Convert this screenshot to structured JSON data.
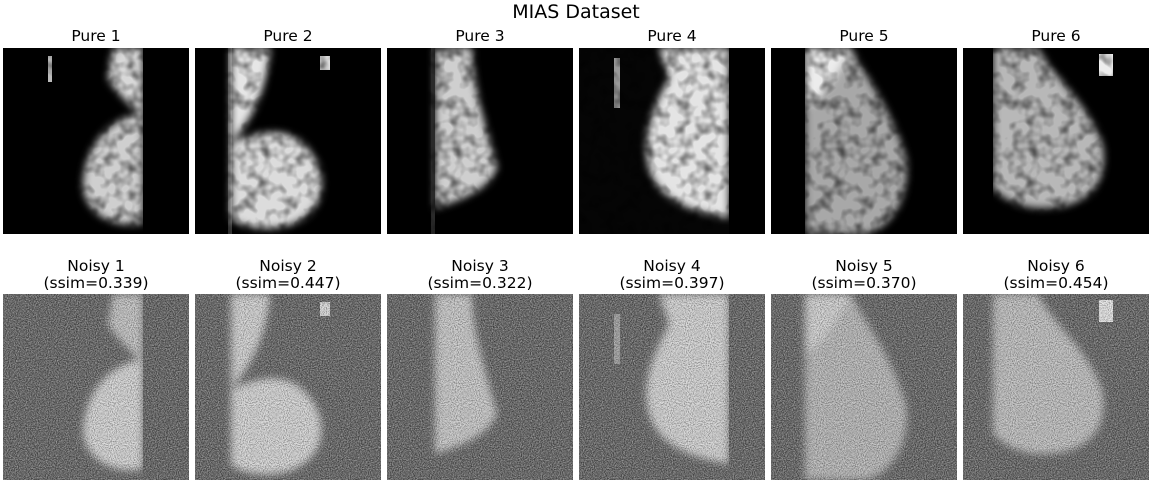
{
  "figure": {
    "title": "MIAS Dataset"
  },
  "pure_row": [
    {
      "title": "Pure 1"
    },
    {
      "title": "Pure 2"
    },
    {
      "title": "Pure 3"
    },
    {
      "title": "Pure 4"
    },
    {
      "title": "Pure 5"
    },
    {
      "title": "Pure 6"
    }
  ],
  "noisy_row": [
    {
      "title_line1": "Noisy 1",
      "title_line2": "(ssim=0.339)",
      "ssim": 0.339
    },
    {
      "title_line1": "Noisy 2",
      "title_line2": "(ssim=0.447)",
      "ssim": 0.447
    },
    {
      "title_line1": "Noisy 3",
      "title_line2": "(ssim=0.322)",
      "ssim": 0.322
    },
    {
      "title_line1": "Noisy 4",
      "title_line2": "(ssim=0.397)",
      "ssim": 0.397
    },
    {
      "title_line1": "Noisy 5",
      "title_line2": "(ssim=0.370)",
      "ssim": 0.37
    },
    {
      "title_line1": "Noisy 6",
      "title_line2": "(ssim=0.454)",
      "ssim": 0.454
    }
  ]
}
